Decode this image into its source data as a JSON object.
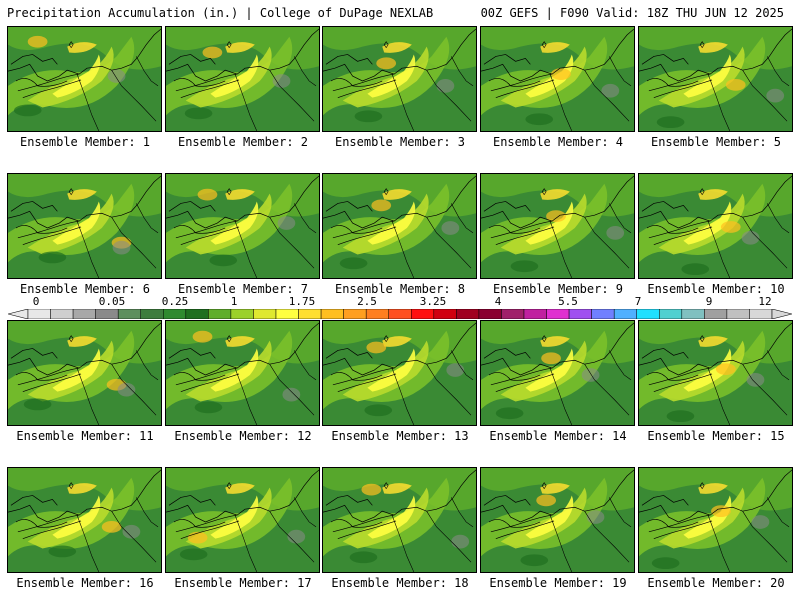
{
  "header": {
    "title": "Precipitation Accumulation (in.) | College of DuPage NEXLAB",
    "run_info": "00Z GEFS | F090 Valid: 18Z THU JUN 12 2025"
  },
  "panels": [
    {
      "label": "Ensemble Member: 1"
    },
    {
      "label": "Ensemble Member: 2"
    },
    {
      "label": "Ensemble Member: 3"
    },
    {
      "label": "Ensemble Member: 4"
    },
    {
      "label": "Ensemble Member: 5"
    },
    {
      "label": "Ensemble Member: 6"
    },
    {
      "label": "Ensemble Member: 7"
    },
    {
      "label": "Ensemble Member: 8"
    },
    {
      "label": "Ensemble Member: 9"
    },
    {
      "label": "Ensemble Member: 10"
    },
    {
      "label": "Ensemble Member: 11"
    },
    {
      "label": "Ensemble Member: 12"
    },
    {
      "label": "Ensemble Member: 13"
    },
    {
      "label": "Ensemble Member: 14"
    },
    {
      "label": "Ensemble Member: 15"
    },
    {
      "label": "Ensemble Member: 16"
    },
    {
      "label": "Ensemble Member: 17"
    },
    {
      "label": "Ensemble Member: 18"
    },
    {
      "label": "Ensemble Member: 19"
    },
    {
      "label": "Ensemble Member: 20"
    }
  ],
  "colorbar": {
    "labels": [
      "0",
      "0.05",
      "0.25",
      "1",
      "1.75",
      "2.5",
      "3.25",
      "4",
      "5.5",
      "7",
      "9",
      "12"
    ],
    "colors": [
      "#e8e8e8",
      "#cfcfcf",
      "#a8a8a8",
      "#8a8a8a",
      "#5e8f5e",
      "#3e7d3e",
      "#2f8a2f",
      "#1f6f1f",
      "#5fae2a",
      "#9bd12a",
      "#dfe830",
      "#ffff40",
      "#ffdf30",
      "#ffbf20",
      "#ff9f20",
      "#ff7f20",
      "#ff5020",
      "#ff1010",
      "#d00010",
      "#a00020",
      "#8a0030",
      "#a0206a",
      "#c020a0",
      "#e030d0",
      "#a050f0",
      "#7080ff",
      "#50b0ff",
      "#20e0ff",
      "#50d0d0",
      "#80c0c0",
      "#a0a0a0",
      "#c0c0c0",
      "#d8d8d8"
    ]
  }
}
